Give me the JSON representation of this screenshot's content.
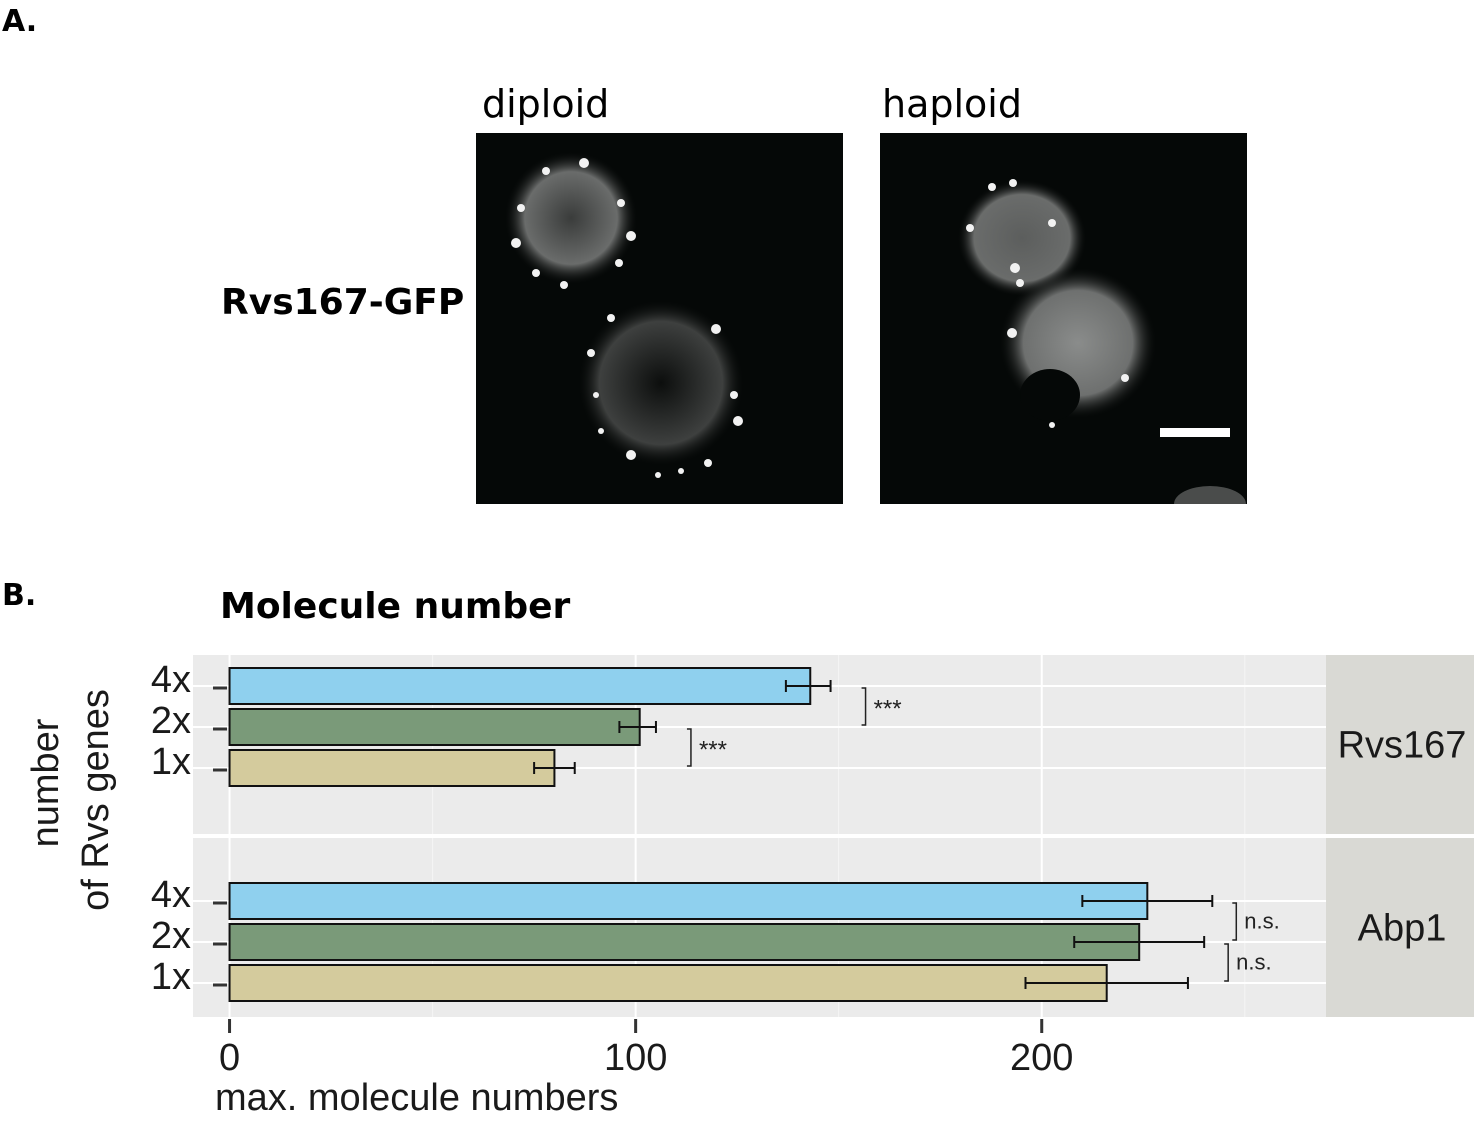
{
  "panel_a": {
    "letter": "A.",
    "columns": [
      "diploid",
      "haploid"
    ],
    "row_label": "Rvs167-GFP"
  },
  "panel_b": {
    "letter": "B.",
    "title": "Molecule number"
  },
  "chart_data": {
    "type": "bar",
    "orientation": "horizontal",
    "title": "Molecule number",
    "xlabel": "max. molecule numbers",
    "ylabel_lines": [
      "number",
      "of Rvs genes"
    ],
    "xlim": [
      -9,
      270
    ],
    "xticks": [
      0,
      100,
      200
    ],
    "grid": true,
    "categories": [
      "4x",
      "2x",
      "1x"
    ],
    "colors": {
      "4x": "#8fd0ee",
      "2x": "#7a9a79",
      "1x": "#d4cb9d"
    },
    "facets": [
      {
        "name": "Rvs167",
        "bars": [
          {
            "category": "4x",
            "value": 143,
            "err_low": 137,
            "err_high": 148
          },
          {
            "category": "2x",
            "value": 101,
            "err_low": 96,
            "err_high": 105
          },
          {
            "category": "1x",
            "value": 80,
            "err_low": 75,
            "err_high": 85
          }
        ],
        "annotations": [
          {
            "between": [
              "4x",
              "2x"
            ],
            "text": "***"
          },
          {
            "between": [
              "2x",
              "1x"
            ],
            "text": "***"
          }
        ]
      },
      {
        "name": "Abp1",
        "bars": [
          {
            "category": "4x",
            "value": 226,
            "err_low": 210,
            "err_high": 242
          },
          {
            "category": "2x",
            "value": 224,
            "err_low": 208,
            "err_high": 240
          },
          {
            "category": "1x",
            "value": 216,
            "err_low": 196,
            "err_high": 236
          }
        ],
        "annotations": [
          {
            "between": [
              "4x",
              "2x"
            ],
            "text": "n.s."
          },
          {
            "between": [
              "2x",
              "1x"
            ],
            "text": "n.s."
          }
        ]
      }
    ]
  }
}
